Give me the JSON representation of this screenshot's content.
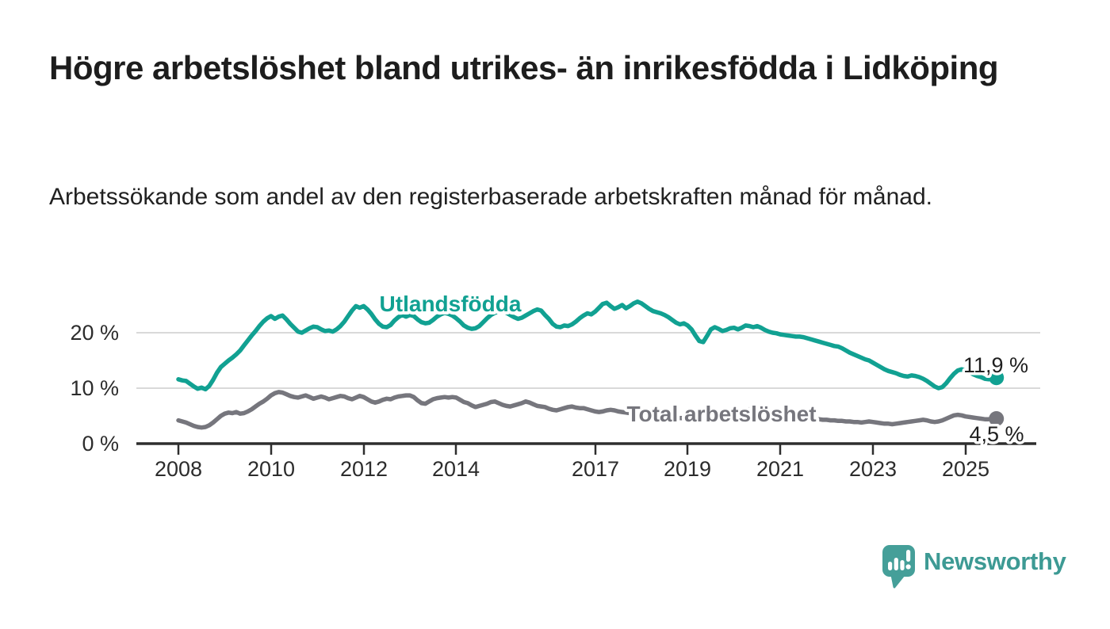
{
  "header": {
    "title": "Högre arbetslöshet bland utrikes- än inrikesfödda i Lidköping",
    "subtitle": "Arbetssökande som andel av den registerbaserade arbetskraften månad för månad."
  },
  "chart_data": {
    "type": "line",
    "title": "Högre arbetslöshet bland utrikes- än inrikesfödda i Lidköping",
    "subtitle": "Arbetssökande som andel av den registerbaserade arbetskraften månad för månad.",
    "x_start_year": 2008,
    "x_frequency": "monthly",
    "x_end": "2025-09",
    "ylim": [
      0,
      28
    ],
    "grid": "horizontal",
    "y_axis": {
      "tick_values": [
        0,
        10,
        20
      ],
      "tick_labels": [
        "0 %",
        "10 %",
        "20 %"
      ]
    },
    "x_axis": {
      "tick_years": [
        2008,
        2010,
        2012,
        2014,
        2017,
        2019,
        2021,
        2023,
        2025
      ],
      "tick_labels": [
        "2008",
        "2010",
        "2012",
        "2014",
        "2017",
        "2019",
        "2021",
        "2023",
        "2025"
      ]
    },
    "series": [
      {
        "name": "Utlandsfödda",
        "color": "#11A192",
        "end_value": 11.9,
        "end_label": "11,9 %",
        "values": [
          11.6,
          11.4,
          11.3,
          10.8,
          10.3,
          9.9,
          10.1,
          9.8,
          10.4,
          11.5,
          12.8,
          13.8,
          14.4,
          15.0,
          15.5,
          16.1,
          16.8,
          17.7,
          18.6,
          19.5,
          20.3,
          21.2,
          22.0,
          22.6,
          23.0,
          22.5,
          22.9,
          23.1,
          22.4,
          21.6,
          20.9,
          20.2,
          20.0,
          20.4,
          20.8,
          21.1,
          21.0,
          20.6,
          20.3,
          20.4,
          20.2,
          20.6,
          21.2,
          22.0,
          23.0,
          24.0,
          24.8,
          24.5,
          24.8,
          24.2,
          23.4,
          22.4,
          21.6,
          21.1,
          21.0,
          21.4,
          22.2,
          22.8,
          23.2,
          22.9,
          23.2,
          23.0,
          22.4,
          21.9,
          21.7,
          21.8,
          22.3,
          22.9,
          23.3,
          23.6,
          23.4,
          23.1,
          22.6,
          22.0,
          21.3,
          20.9,
          20.7,
          20.8,
          21.2,
          21.9,
          22.6,
          23.2,
          23.6,
          23.8,
          23.9,
          23.6,
          23.2,
          22.8,
          22.5,
          22.7,
          23.1,
          23.5,
          23.9,
          24.2,
          24.0,
          23.2,
          22.5,
          21.6,
          21.1,
          21.0,
          21.3,
          21.2,
          21.5,
          22.0,
          22.6,
          23.1,
          23.5,
          23.3,
          23.8,
          24.5,
          25.2,
          25.4,
          24.8,
          24.3,
          24.6,
          25.0,
          24.4,
          24.8,
          25.3,
          25.6,
          25.3,
          24.8,
          24.3,
          23.9,
          23.7,
          23.5,
          23.2,
          22.8,
          22.3,
          21.8,
          21.5,
          21.7,
          21.3,
          20.6,
          19.5,
          18.5,
          18.3,
          19.4,
          20.6,
          21.0,
          20.7,
          20.3,
          20.5,
          20.8,
          20.9,
          20.6,
          20.9,
          21.3,
          21.2,
          21.0,
          21.2,
          20.9,
          20.5,
          20.2,
          20.0,
          19.9,
          19.7,
          19.6,
          19.5,
          19.4,
          19.3,
          19.3,
          19.2,
          19.0,
          18.8,
          18.6,
          18.4,
          18.2,
          18.0,
          17.8,
          17.6,
          17.5,
          17.2,
          16.8,
          16.4,
          16.1,
          15.8,
          15.5,
          15.2,
          15.0,
          14.6,
          14.2,
          13.8,
          13.4,
          13.1,
          12.9,
          12.7,
          12.4,
          12.2,
          12.1,
          12.3,
          12.2,
          12.0,
          11.7,
          11.3,
          10.8,
          10.3,
          10.0,
          10.2,
          10.9,
          11.8,
          12.6,
          13.2,
          13.4,
          13.2,
          12.9,
          12.5,
          12.2,
          12.0,
          11.7,
          11.6,
          11.8,
          11.9
        ]
      },
      {
        "name": "Total arbetslöshet",
        "color": "#76767D",
        "end_value": 4.5,
        "end_label": "4,5 %",
        "values": [
          4.2,
          4.0,
          3.8,
          3.5,
          3.2,
          3.0,
          2.9,
          3.0,
          3.3,
          3.8,
          4.4,
          5.0,
          5.4,
          5.6,
          5.5,
          5.7,
          5.4,
          5.5,
          5.8,
          6.2,
          6.7,
          7.2,
          7.6,
          8.1,
          8.7,
          9.1,
          9.3,
          9.2,
          8.9,
          8.6,
          8.4,
          8.3,
          8.5,
          8.7,
          8.4,
          8.1,
          8.3,
          8.5,
          8.3,
          8.0,
          8.2,
          8.4,
          8.6,
          8.5,
          8.2,
          8.0,
          8.3,
          8.6,
          8.4,
          8.0,
          7.6,
          7.4,
          7.6,
          7.9,
          8.1,
          8.0,
          8.3,
          8.5,
          8.6,
          8.7,
          8.7,
          8.4,
          7.8,
          7.3,
          7.2,
          7.6,
          8.0,
          8.2,
          8.3,
          8.4,
          8.3,
          8.4,
          8.3,
          7.9,
          7.5,
          7.3,
          6.9,
          6.6,
          6.8,
          7.0,
          7.2,
          7.5,
          7.6,
          7.3,
          7.0,
          6.8,
          6.7,
          6.9,
          7.1,
          7.3,
          7.6,
          7.4,
          7.1,
          6.8,
          6.7,
          6.6,
          6.3,
          6.1,
          6.0,
          6.2,
          6.4,
          6.6,
          6.7,
          6.5,
          6.4,
          6.4,
          6.2,
          6.0,
          5.8,
          5.7,
          5.8,
          6.0,
          6.1,
          6.0,
          5.8,
          5.7,
          5.6,
          5.5,
          5.4,
          5.3,
          5.2,
          5.1,
          5.1,
          5.0,
          4.9,
          4.9,
          4.8,
          4.8,
          4.7,
          4.7,
          4.6,
          4.6,
          4.5,
          4.5,
          4.4,
          4.4,
          4.3,
          4.3,
          4.4,
          4.4,
          4.5,
          4.5,
          4.6,
          4.7,
          4.9,
          5.0,
          5.6,
          6.0,
          6.2,
          6.3,
          6.2,
          6.1,
          6.0,
          5.8,
          5.6,
          5.4,
          5.3,
          5.2,
          5.1,
          4.9,
          4.8,
          4.7,
          4.6,
          4.5,
          4.5,
          4.4,
          4.4,
          4.3,
          4.3,
          4.2,
          4.2,
          4.1,
          4.1,
          4.0,
          4.0,
          3.9,
          3.9,
          3.8,
          3.9,
          4.0,
          3.9,
          3.8,
          3.7,
          3.6,
          3.6,
          3.5,
          3.6,
          3.7,
          3.8,
          3.9,
          4.0,
          4.1,
          4.2,
          4.3,
          4.2,
          4.0,
          3.9,
          4.0,
          4.2,
          4.5,
          4.8,
          5.1,
          5.2,
          5.1,
          4.9,
          4.8,
          4.7,
          4.6,
          4.5,
          4.4,
          4.4,
          4.5,
          4.5
        ]
      }
    ]
  },
  "branding": {
    "logo_text": "Newsworthy",
    "logo_color": "#3D9A94",
    "logo_icon": "speech-bubble-bar-chart"
  }
}
